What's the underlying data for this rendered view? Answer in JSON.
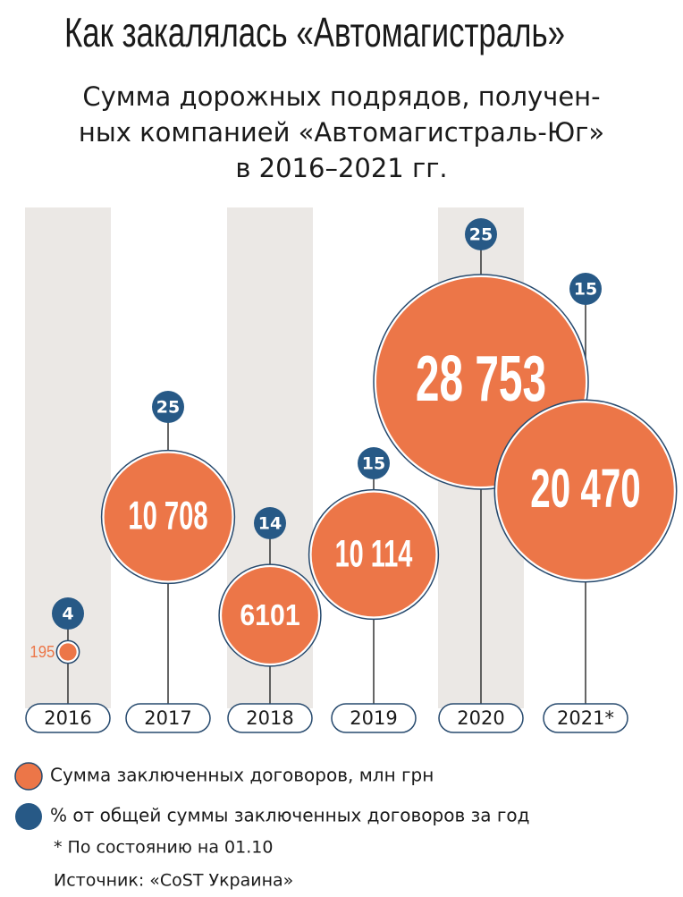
{
  "chart_data": {
    "type": "bubble",
    "title": "Как закалялась «Автомагистраль»",
    "subtitle": [
      "Сумма дорожных подрядов, получен-",
      "ных компанией «Автомагистраль-Юг»",
      "в 2016–2021 гг."
    ],
    "categories": [
      "2016",
      "2017",
      "2018",
      "2019",
      "2020",
      "2021*"
    ],
    "series": [
      {
        "name": "Сумма заключенных договоров, млн грн",
        "color": "#ec7648",
        "values": [
          195,
          10708,
          6101,
          10114,
          28753,
          20470
        ],
        "value_labels": [
          "195",
          "10 708",
          "6101",
          "10 114",
          "28 753",
          "20 470"
        ]
      },
      {
        "name": "% от общей суммы заключенных договоров за год",
        "color": "#275986",
        "values": [
          4,
          25,
          14,
          15,
          25,
          15
        ]
      }
    ],
    "footnote": "* По состоянию на 01.10",
    "source": "Источник: «CoST Украина»"
  }
}
